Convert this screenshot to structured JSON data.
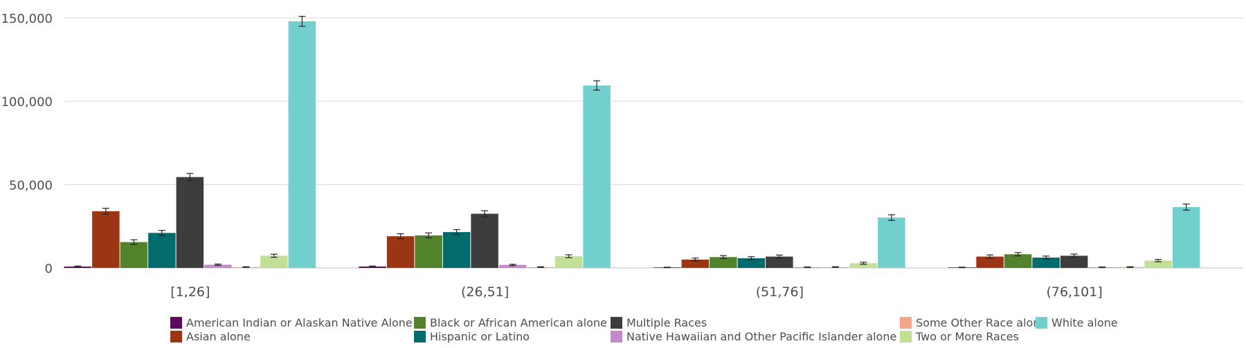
{
  "chart_data": {
    "type": "bar",
    "title": "",
    "xlabel": "",
    "ylabel": "",
    "ylim": [
      0,
      150000
    ],
    "y_ticks": [
      "0",
      "50,000",
      "100,000",
      "150,000"
    ],
    "y_tick_values": [
      0,
      50000,
      100000,
      150000
    ],
    "grid": true,
    "legend_position": "bottom",
    "error_bars": true,
    "categories": [
      "[1,26]",
      "(26,51]",
      "(51,76]",
      "(76,101]"
    ],
    "series": [
      {
        "name": "American Indian or Alaskan Native Alone",
        "color": "#5c0a5e",
        "values": [
          800,
          800,
          300,
          300
        ],
        "errors": [
          300,
          300,
          150,
          150
        ]
      },
      {
        "name": "Asian alone",
        "color": "#9c3513",
        "values": [
          34000,
          19000,
          5000,
          6800
        ],
        "errors": [
          1800,
          1500,
          900,
          1000
        ]
      },
      {
        "name": "Black or African American alone",
        "color": "#52822a",
        "values": [
          15500,
          19500,
          6500,
          8200
        ],
        "errors": [
          1400,
          1500,
          900,
          1000
        ]
      },
      {
        "name": "Hispanic or Latino",
        "color": "#036b6b",
        "values": [
          21000,
          21500,
          5800,
          6200
        ],
        "errors": [
          1500,
          1500,
          900,
          900
        ]
      },
      {
        "name": "Multiple Races",
        "color": "#3d3d3d",
        "values": [
          54500,
          32500,
          6800,
          7300
        ],
        "errors": [
          2200,
          1800,
          900,
          1000
        ]
      },
      {
        "name": "Native Hawaiian and Other Pacific Islander alone",
        "color": "#c288c8",
        "values": [
          1900,
          1800,
          400,
          400
        ],
        "errors": [
          400,
          400,
          150,
          150
        ]
      },
      {
        "name": "Some Other Race alone",
        "color": "#f4a58a",
        "values": [
          500,
          500,
          500,
          500
        ],
        "errors": [
          200,
          200,
          200,
          200
        ]
      },
      {
        "name": "Two or More Races",
        "color": "#c1df95",
        "values": [
          7300,
          7000,
          2800,
          4400
        ],
        "errors": [
          900,
          900,
          600,
          700
        ]
      },
      {
        "name": "White alone",
        "color": "#72d0cc",
        "values": [
          148000,
          109500,
          30200,
          36500
        ],
        "errors": [
          3000,
          2800,
          1700,
          1800
        ]
      }
    ]
  },
  "legend": {
    "rows": [
      [
        "American Indian or Alaskan Native Alone",
        "Black or African American alone",
        "Multiple Races",
        "Some Other Race alone",
        "White alone"
      ],
      [
        "Asian alone",
        "Hispanic or Latino",
        "Native Hawaiian and Other Pacific Islander alone",
        "Two or More Races"
      ]
    ]
  }
}
